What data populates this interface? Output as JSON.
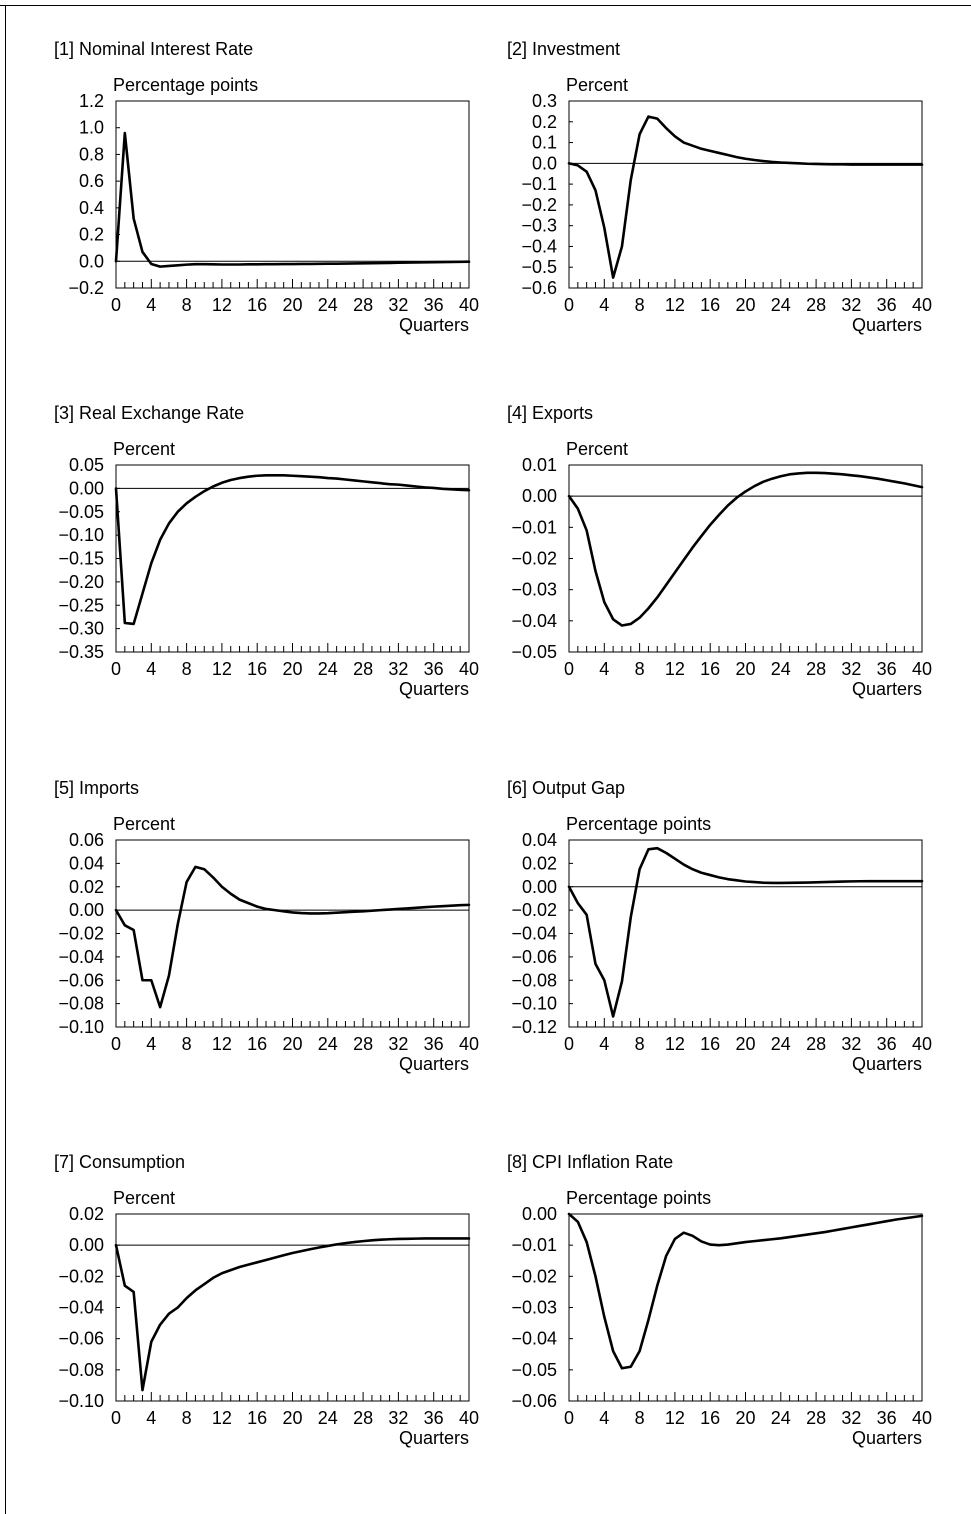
{
  "chart_data": [
    {
      "type": "line",
      "title": "[1] Nominal Interest Rate",
      "ylabel": "Percentage points",
      "xlabel": "Quarters",
      "x_ticks": [
        0,
        4,
        8,
        12,
        16,
        20,
        24,
        28,
        32,
        36,
        40
      ],
      "y_ticks": [
        "1.2",
        "1.0",
        "0.8",
        "0.6",
        "0.4",
        "0.2",
        "0.0",
        "−0.2"
      ],
      "xlim": [
        0,
        40
      ],
      "ylim": [
        -0.2,
        1.2
      ],
      "zero_line": true,
      "values": [
        0.0,
        0.96,
        0.32,
        0.07,
        -0.02,
        -0.04,
        -0.035,
        -0.03,
        -0.025,
        -0.022,
        -0.022,
        -0.023,
        -0.024,
        -0.024,
        -0.024,
        -0.023,
        -0.023,
        -0.022,
        -0.022,
        -0.021,
        -0.021,
        -0.02,
        -0.02,
        -0.019,
        -0.018,
        -0.018,
        -0.017,
        -0.016,
        -0.015,
        -0.014,
        -0.013,
        -0.012,
        -0.011,
        -0.01,
        -0.009,
        -0.008,
        -0.007,
        -0.006,
        -0.005,
        -0.004,
        -0.003
      ]
    },
    {
      "type": "line",
      "title": "[2] Investment",
      "ylabel": "Percent",
      "xlabel": "Quarters",
      "x_ticks": [
        0,
        4,
        8,
        12,
        16,
        20,
        24,
        28,
        32,
        36,
        40
      ],
      "y_ticks": [
        "0.3",
        "0.2",
        "0.1",
        "0.0",
        "−0.1",
        "−0.2",
        "−0.3",
        "−0.4",
        "−0.5",
        "−0.6"
      ],
      "xlim": [
        0,
        40
      ],
      "ylim": [
        -0.6,
        0.3
      ],
      "zero_line": true,
      "values": [
        0.0,
        -0.01,
        -0.04,
        -0.13,
        -0.31,
        -0.55,
        -0.4,
        -0.08,
        0.14,
        0.225,
        0.215,
        0.17,
        0.13,
        0.1,
        0.085,
        0.07,
        0.06,
        0.05,
        0.04,
        0.03,
        0.022,
        0.016,
        0.011,
        0.007,
        0.004,
        0.002,
        0.0,
        -0.002,
        -0.003,
        -0.004,
        -0.005,
        -0.005,
        -0.006,
        -0.006,
        -0.006,
        -0.006,
        -0.006,
        -0.006,
        -0.006,
        -0.006,
        -0.006
      ]
    },
    {
      "type": "line",
      "title": "[3] Real Exchange Rate",
      "ylabel": "Percent",
      "xlabel": "Quarters",
      "x_ticks": [
        0,
        4,
        8,
        12,
        16,
        20,
        24,
        28,
        32,
        36,
        40
      ],
      "y_ticks": [
        "0.05",
        "0.00",
        "−0.05",
        "−0.10",
        "−0.15",
        "−0.20",
        "−0.25",
        "−0.30",
        "−0.35"
      ],
      "xlim": [
        0,
        40
      ],
      "ylim": [
        -0.35,
        0.05
      ],
      "zero_line": true,
      "values": [
        0.0,
        -0.288,
        -0.29,
        -0.225,
        -0.16,
        -0.11,
        -0.075,
        -0.05,
        -0.032,
        -0.018,
        -0.006,
        0.004,
        0.012,
        0.018,
        0.022,
        0.025,
        0.027,
        0.028,
        0.028,
        0.028,
        0.027,
        0.026,
        0.025,
        0.024,
        0.022,
        0.021,
        0.019,
        0.017,
        0.015,
        0.013,
        0.011,
        0.009,
        0.008,
        0.006,
        0.004,
        0.002,
        0.001,
        -0.001,
        -0.002,
        -0.003,
        -0.004
      ]
    },
    {
      "type": "line",
      "title": "[4] Exports",
      "ylabel": "Percent",
      "xlabel": "Quarters",
      "x_ticks": [
        0,
        4,
        8,
        12,
        16,
        20,
        24,
        28,
        32,
        36,
        40
      ],
      "y_ticks": [
        "0.01",
        "0.00",
        "−0.01",
        "−0.02",
        "−0.03",
        "−0.04",
        "−0.05"
      ],
      "xlim": [
        0,
        40
      ],
      "ylim": [
        -0.05,
        0.01
      ],
      "zero_line": true,
      "values": [
        0.0,
        -0.004,
        -0.011,
        -0.024,
        -0.034,
        -0.0395,
        -0.0415,
        -0.041,
        -0.039,
        -0.036,
        -0.0325,
        -0.0285,
        -0.0245,
        -0.0205,
        -0.0165,
        -0.0128,
        -0.0092,
        -0.006,
        -0.003,
        -0.0005,
        0.0015,
        0.0032,
        0.0046,
        0.0056,
        0.0064,
        0.007,
        0.0073,
        0.0075,
        0.0075,
        0.0074,
        0.0072,
        0.007,
        0.0067,
        0.0064,
        0.006,
        0.0056,
        0.0051,
        0.0046,
        0.0041,
        0.0035,
        0.0029
      ]
    },
    {
      "type": "line",
      "title": "[5] Imports",
      "ylabel": "Percent",
      "xlabel": "Quarters",
      "x_ticks": [
        0,
        4,
        8,
        12,
        16,
        20,
        24,
        28,
        32,
        36,
        40
      ],
      "y_ticks": [
        "0.06",
        "0.04",
        "0.02",
        "0.00",
        "−0.02",
        "−0.04",
        "−0.06",
        "−0.08",
        "−0.10"
      ],
      "xlim": [
        0,
        40
      ],
      "ylim": [
        -0.1,
        0.06
      ],
      "zero_line": true,
      "values": [
        0.0,
        -0.013,
        -0.017,
        -0.06,
        -0.06,
        -0.083,
        -0.056,
        -0.012,
        0.024,
        0.037,
        0.035,
        0.028,
        0.02,
        0.014,
        0.009,
        0.006,
        0.003,
        0.001,
        0.0,
        -0.001,
        -0.002,
        -0.0025,
        -0.0028,
        -0.0028,
        -0.0026,
        -0.0022,
        -0.0018,
        -0.0014,
        -0.001,
        -0.0005,
        0.0,
        0.0005,
        0.001,
        0.0015,
        0.002,
        0.0025,
        0.003,
        0.0034,
        0.0038,
        0.0042,
        0.0045
      ]
    },
    {
      "type": "line",
      "title": "[6] Output Gap",
      "ylabel": "Percentage points",
      "xlabel": "Quarters",
      "x_ticks": [
        0,
        4,
        8,
        12,
        16,
        20,
        24,
        28,
        32,
        36,
        40
      ],
      "y_ticks": [
        "0.04",
        "0.02",
        "0.00",
        "−0.02",
        "−0.04",
        "−0.06",
        "−0.08",
        "−0.10",
        "−0.12"
      ],
      "xlim": [
        0,
        40
      ],
      "ylim": [
        -0.12,
        0.04
      ],
      "zero_line": true,
      "values": [
        0.0,
        -0.014,
        -0.024,
        -0.066,
        -0.08,
        -0.111,
        -0.081,
        -0.026,
        0.015,
        0.032,
        0.033,
        0.029,
        0.024,
        0.019,
        0.015,
        0.012,
        0.01,
        0.008,
        0.0065,
        0.0055,
        0.0045,
        0.004,
        0.0035,
        0.0033,
        0.0033,
        0.0034,
        0.0035,
        0.0036,
        0.0038,
        0.004,
        0.0042,
        0.0044,
        0.0046,
        0.0047,
        0.0048,
        0.0048,
        0.0048,
        0.0048,
        0.0048,
        0.0048,
        0.0048
      ]
    },
    {
      "type": "line",
      "title": "[7] Consumption",
      "ylabel": "Percent",
      "xlabel": "Quarters",
      "x_ticks": [
        0,
        4,
        8,
        12,
        16,
        20,
        24,
        28,
        32,
        36,
        40
      ],
      "y_ticks": [
        "0.02",
        "0.00",
        "−0.02",
        "−0.04",
        "−0.06",
        "−0.08",
        "−0.10"
      ],
      "xlim": [
        0,
        40
      ],
      "ylim": [
        -0.1,
        0.02
      ],
      "zero_line": true,
      "values": [
        0.0,
        -0.026,
        -0.03,
        -0.093,
        -0.062,
        -0.051,
        -0.044,
        -0.04,
        -0.034,
        -0.029,
        -0.025,
        -0.021,
        -0.018,
        -0.016,
        -0.014,
        -0.0125,
        -0.011,
        -0.0095,
        -0.008,
        -0.0065,
        -0.005,
        -0.0038,
        -0.0026,
        -0.0015,
        -0.0005,
        0.0005,
        0.0013,
        0.002,
        0.0026,
        0.0031,
        0.0035,
        0.0038,
        0.004,
        0.0041,
        0.0042,
        0.0043,
        0.0043,
        0.0043,
        0.0043,
        0.0043,
        0.0043
      ]
    },
    {
      "type": "line",
      "title": "[8] CPI Inflation Rate",
      "ylabel": "Percentage points",
      "xlabel": "Quarters",
      "x_ticks": [
        0,
        4,
        8,
        12,
        16,
        20,
        24,
        28,
        32,
        36,
        40
      ],
      "y_ticks": [
        "0.00",
        "−0.01",
        "−0.02",
        "−0.03",
        "−0.04",
        "−0.05",
        "−0.06"
      ],
      "xlim": [
        0,
        40
      ],
      "ylim": [
        -0.06,
        0.0
      ],
      "zero_line": false,
      "values": [
        0.0,
        -0.0025,
        -0.009,
        -0.02,
        -0.033,
        -0.044,
        -0.0495,
        -0.049,
        -0.044,
        -0.034,
        -0.023,
        -0.0135,
        -0.008,
        -0.006,
        -0.007,
        -0.0088,
        -0.0098,
        -0.01,
        -0.0098,
        -0.0094,
        -0.009,
        -0.0087,
        -0.0084,
        -0.0081,
        -0.0078,
        -0.0074,
        -0.007,
        -0.0066,
        -0.0062,
        -0.0058,
        -0.0053,
        -0.0048,
        -0.0043,
        -0.0038,
        -0.0033,
        -0.0028,
        -0.0023,
        -0.0018,
        -0.0014,
        -0.001,
        -0.0006
      ]
    }
  ]
}
